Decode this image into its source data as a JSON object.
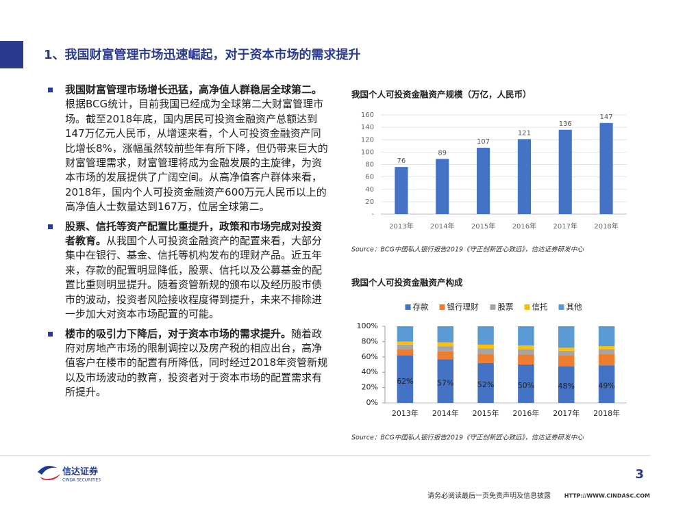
{
  "header": {
    "title": "1、我国财富管理市场迅速崛起，对于资本市场的需求提升"
  },
  "bullets": [
    {
      "bold": "我国财富管理市场增长迅猛，高净值人群稳居全球第二。",
      "text": "根据BCG统计，目前我国已经成为全球第二大财富管理市场。截至2018年底，国内居民可投资金融资产总额达到147万亿元人民币，从增速来看，个人可投资金融资产同比增长8%，涨幅虽然较前些年有所下降，但仍带来巨大的财富管理需求，财富管理将成为金融发展的主旋律，为资本市场的发展提供了广阔空间。从高净值客户群体来看，2018年，国内个人可投资金融资产600万元人民币以上的高净值人士数量达到167万，位居全球第二。"
    },
    {
      "bold": "股票、信托等资产配置比重提升，政策和市场完成对投资者教育。",
      "text": "从我国个人可投资金融资产的配置来看，大部分集中在银行、基金、信托等机构发布的理财产品。近五年来，存款的配置明显降低，股票、信托以及公募基金的配置比重则明显提升。随着资管新规的颁布以及经历股市债市的波动，投资者风险接收程度得到提升，未来不排除进一步加大对资本市场配置的可能。"
    },
    {
      "bold": "楼市的吸引力下降后，对于资本市场的需求提升。",
      "text": "随着政府对房地产市场的限制调控以及房产税的相应出台，高净值客户在楼市的配置有所降低，同时经过2018年资管新规以及市场波动的教育，投资者对于资本市场的配置需求有所提升。"
    }
  ],
  "chart_data": [
    {
      "type": "bar",
      "title": "我国个人可投资金融资产规模（万亿，人民币）",
      "categories": [
        "2013年",
        "2014年",
        "2015年",
        "2016年",
        "2017年",
        "2018年"
      ],
      "values": [
        76,
        89,
        107,
        121,
        136,
        147
      ],
      "color": "#4472c4",
      "ylim": [
        0,
        160
      ],
      "yticks": [
        {
          "value": 0,
          "label": "-"
        },
        20,
        40,
        60,
        80,
        100,
        120,
        140,
        160
      ],
      "source": "Source：BCG中国私人银行报告2019《守正创新匠心致远》，信达证券研发中心"
    },
    {
      "type": "stacked_bar",
      "title": "我国个人可投资金融资产构成",
      "categories": [
        "2013年",
        "2014年",
        "2015年",
        "2016年",
        "2017年",
        "2018年"
      ],
      "series": [
        {
          "name": "存款",
          "color": "#4472c4",
          "values": [
            62,
            57,
            52,
            50,
            48,
            49
          ],
          "value_labels": [
            "62%",
            "57%",
            "52%",
            "50%",
            "48%",
            "49%"
          ]
        },
        {
          "name": "银行理财",
          "color": "#ed7d31",
          "values": [
            8,
            10,
            12,
            13,
            14,
            15
          ]
        },
        {
          "name": "股票",
          "color": "#a5a5a5",
          "values": [
            6,
            7,
            7,
            7,
            6,
            6
          ]
        },
        {
          "name": "信托",
          "color": "#ffc000",
          "values": [
            4,
            5,
            5,
            5,
            4,
            4
          ]
        },
        {
          "name": "其他",
          "color": "#5b9bd5",
          "values": [
            20,
            21,
            24,
            25,
            28,
            26
          ]
        }
      ],
      "ylim": [
        0,
        100
      ],
      "yticks": [
        {
          "value": 0,
          "label": "0%"
        },
        {
          "value": 20,
          "label": "20%"
        },
        {
          "value": 40,
          "label": "40%"
        },
        {
          "value": 60,
          "label": "60%"
        },
        {
          "value": 80,
          "label": "80%"
        },
        {
          "value": 100,
          "label": "100%"
        }
      ],
      "legend": "top",
      "source": "Source：BCG中国私人银行报告2019《守正创新匠心致远》，信达证券研发中心"
    }
  ],
  "footer": {
    "logo": "信达证券",
    "logo_en": "CINDA SECURITIES",
    "page": "3",
    "disclaimer": "请务必阅读最后一页免责声明及信息披露",
    "url": "HTTP://WWW.CINDASC.COM"
  }
}
